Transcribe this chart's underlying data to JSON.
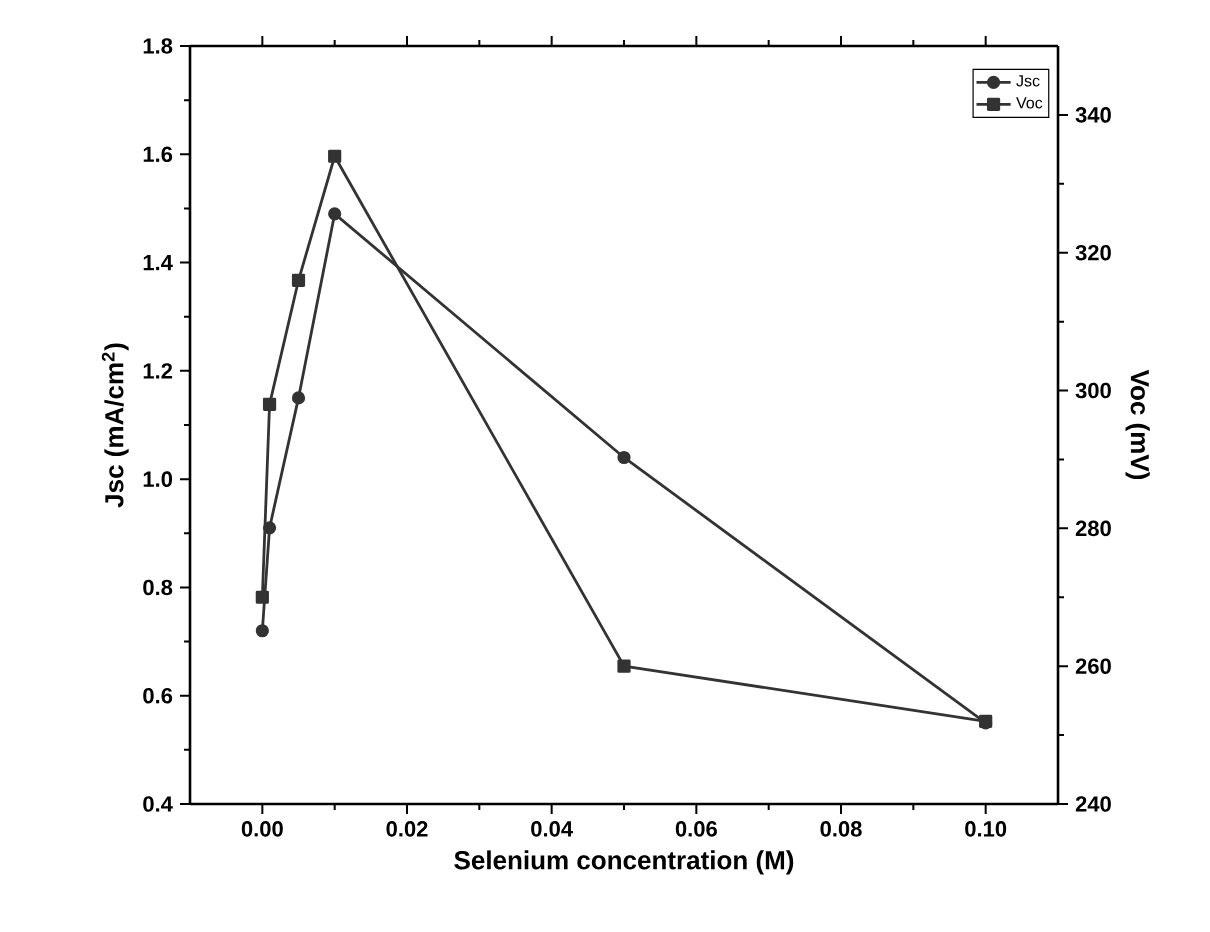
{
  "chart_data": {
    "type": "line",
    "xlabel": "Selenium concentration (M)",
    "ylabel": "Jsc (mA/cm$^{2}$)",
    "y2label": "Voc (mV)",
    "x": [
      0.0,
      0.001,
      0.005,
      0.01,
      0.05,
      0.1
    ],
    "series": [
      {
        "name": "Jsc",
        "color": "#333333",
        "marker": "circle",
        "values": [
          0.72,
          0.91,
          1.15,
          1.49,
          1.04,
          0.55
        ]
      },
      {
        "name": "Voc",
        "color": "#333333",
        "marker": "square",
        "axis": "y2",
        "values": [
          270,
          298,
          316,
          334,
          260,
          252
        ]
      }
    ],
    "xlim": [
      -0.01,
      0.11
    ],
    "xticks": [
      {
        "value": 0.0,
        "label": "0.00"
      },
      0.02,
      0.04,
      0.06,
      0.08,
      {
        "value": 0.1,
        "label": "0.10"
      }
    ],
    "ylim": [
      0.4,
      1.8
    ],
    "yticks": [
      0.4,
      0.6,
      0.8,
      {
        "value": 1.0,
        "label": "1.0"
      },
      1.2,
      1.4,
      1.6,
      1.8
    ],
    "y2lim": [
      240,
      350
    ],
    "y2ticks": [
      240,
      260,
      280,
      300,
      320,
      340
    ],
    "legend": "top right",
    "grid": false,
    "line_style": "solid"
  }
}
